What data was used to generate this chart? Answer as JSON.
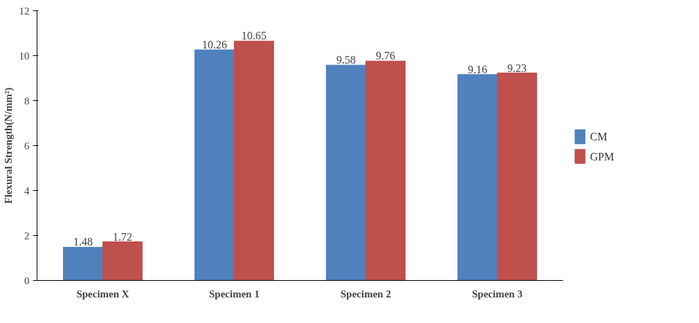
{
  "chart_data": {
    "type": "bar",
    "ylabel": "Flexural Strength(N/mm²)",
    "categories": [
      "Specimen X",
      "Specimen 1",
      "Specimen 2",
      "Specimen 3"
    ],
    "series": [
      {
        "name": "CM",
        "color": "#4f81bd",
        "values": [
          1.48,
          10.26,
          9.58,
          9.16
        ]
      },
      {
        "name": "GPM",
        "color": "#c0504d",
        "values": [
          1.72,
          10.65,
          9.76,
          9.23
        ]
      }
    ],
    "ylim": [
      0,
      12
    ],
    "yticks": [
      0,
      2,
      4,
      6,
      8,
      10,
      12
    ],
    "grid": false,
    "legend": "right",
    "data_labels": true
  }
}
